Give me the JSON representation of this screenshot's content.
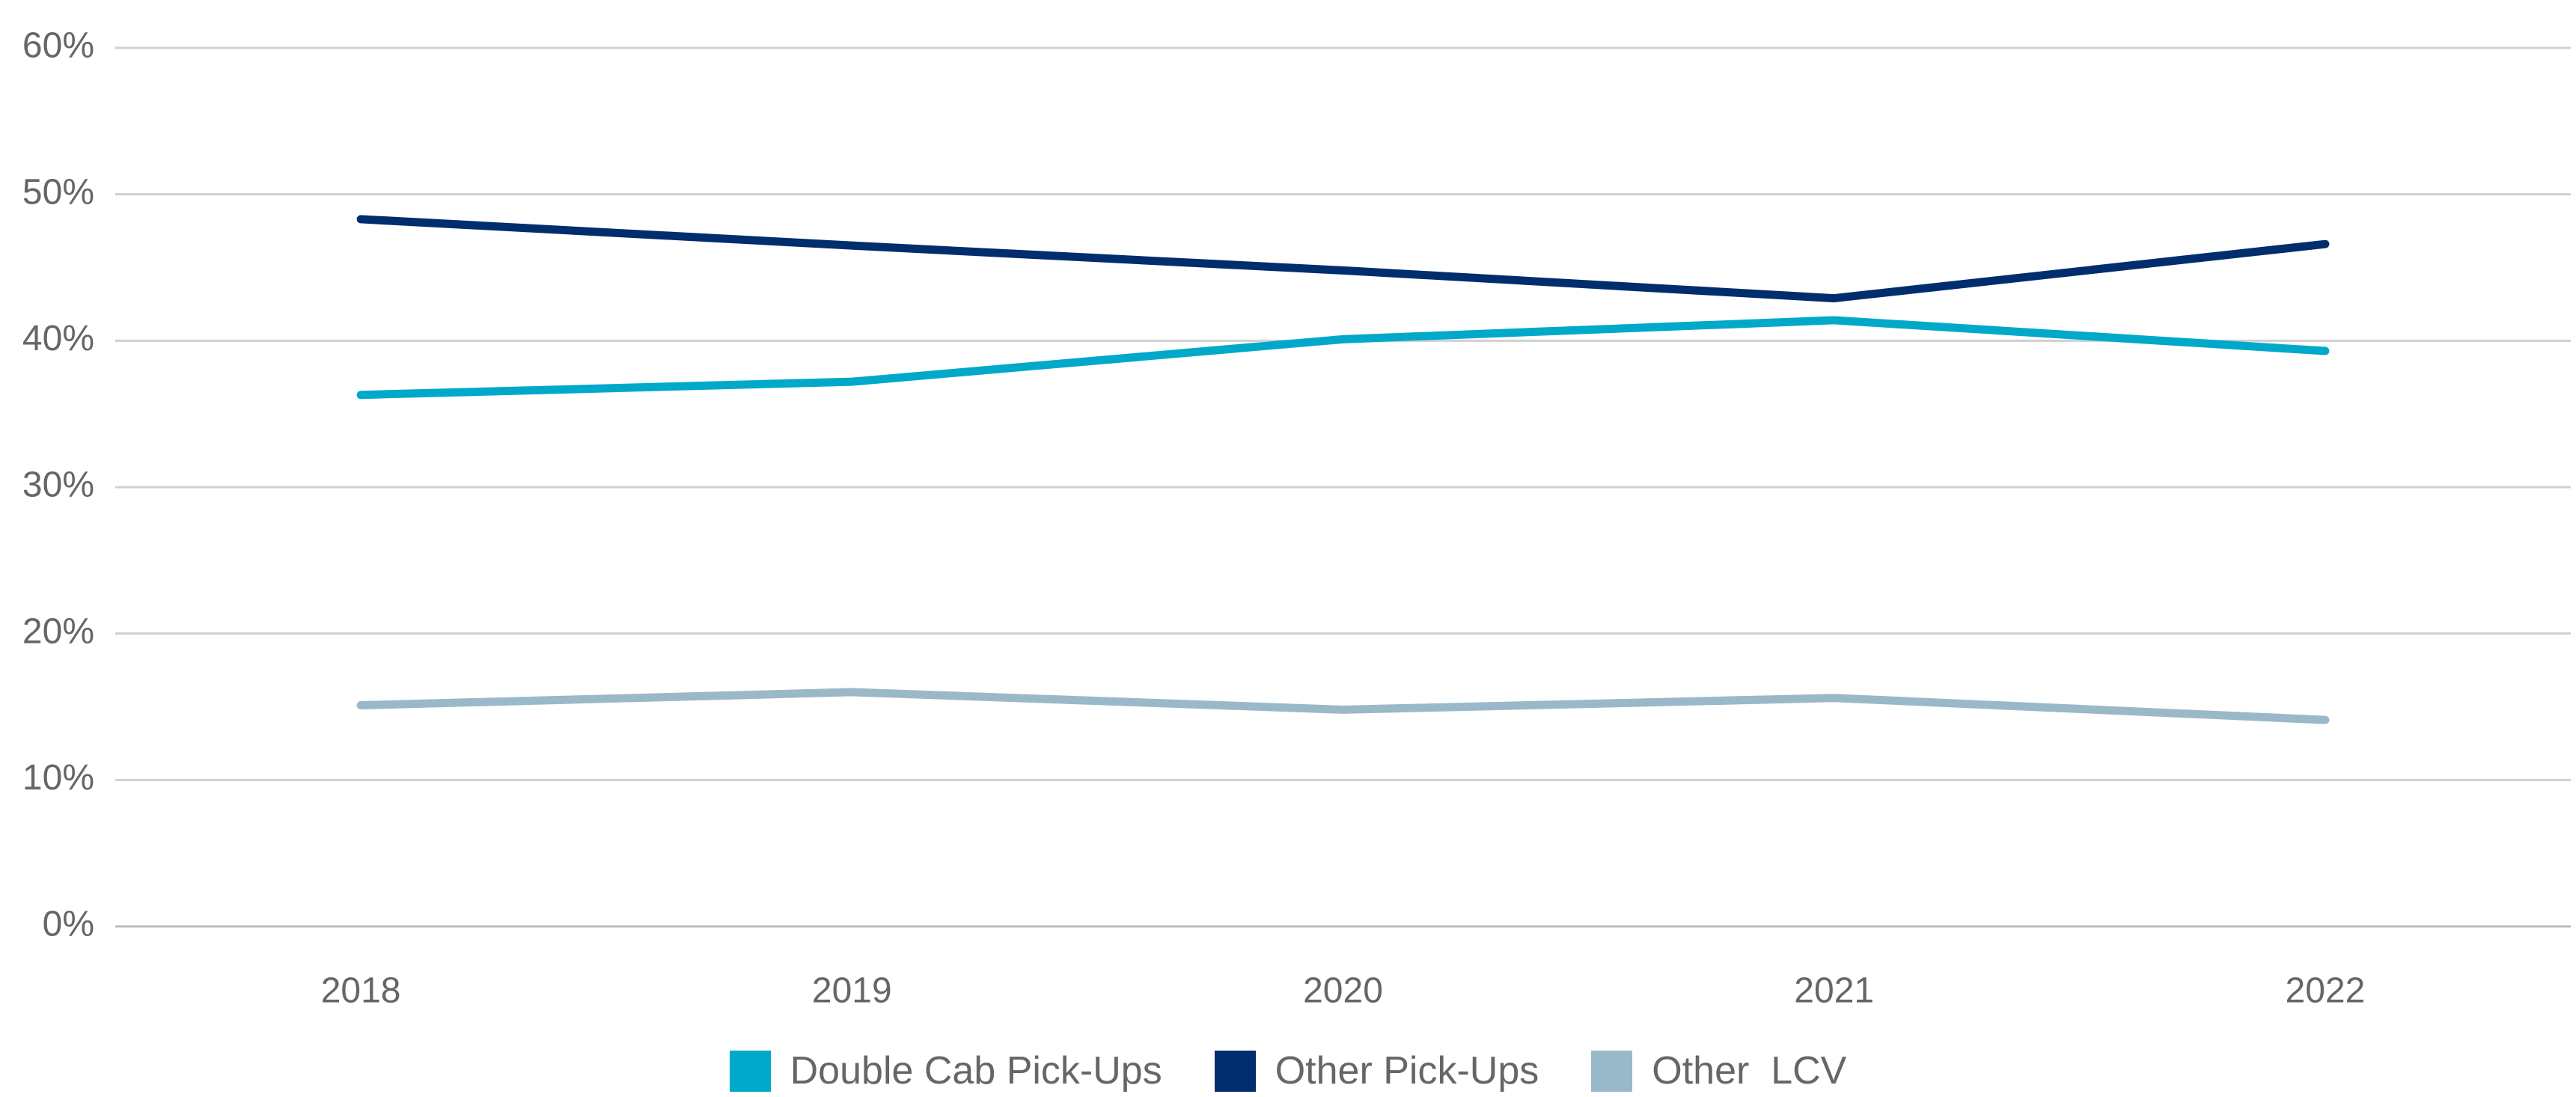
{
  "chart_data": {
    "type": "line",
    "categories": [
      "2018",
      "2019",
      "2020",
      "2021",
      "2022"
    ],
    "series": [
      {
        "name": "Double Cab Pick-Ups",
        "color": "#00a9c9",
        "values": [
          36.3,
          37.2,
          40.1,
          41.4,
          39.3
        ]
      },
      {
        "name": "Other Pick-Ups",
        "color": "#002d6e",
        "values": [
          48.3,
          46.5,
          44.8,
          42.9,
          46.6
        ]
      },
      {
        "name": "Other  LCV",
        "color": "#99b9c9",
        "values": [
          15.1,
          16.0,
          14.8,
          15.6,
          14.1
        ]
      }
    ],
    "ylim": [
      0,
      60
    ],
    "yticks": [
      {
        "value": 0,
        "label": "0%"
      },
      {
        "value": 10,
        "label": "10%"
      },
      {
        "value": 20,
        "label": "20%"
      },
      {
        "value": 30,
        "label": "30%"
      },
      {
        "value": 40,
        "label": "40%"
      },
      {
        "value": 50,
        "label": "50%"
      },
      {
        "value": 60,
        "label": "60%"
      }
    ],
    "grid": true,
    "legend": "bottom"
  }
}
